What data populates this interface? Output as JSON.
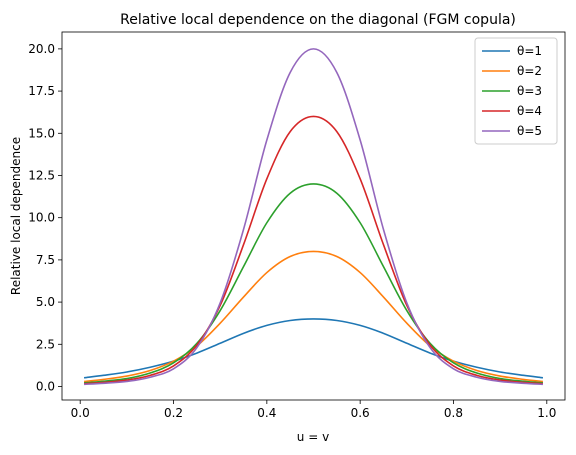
{
  "chart_data": {
    "type": "line",
    "title": "Relative local dependence on the diagonal (FGM copula)",
    "xlabel": "u = v",
    "ylabel": "Relative local dependence",
    "xlim": [
      -0.039,
      1.039
    ],
    "ylim": [
      -0.8,
      21.0
    ],
    "xticks": [
      "0.0",
      "0.2",
      "0.4",
      "0.6",
      "0.8",
      "1.0"
    ],
    "xtick_values": [
      0.0,
      0.2,
      0.4,
      0.6,
      0.8,
      1.0
    ],
    "yticks": [
      "0.0",
      "2.5",
      "5.0",
      "7.5",
      "10.0",
      "12.5",
      "15.0",
      "17.5",
      "20.0"
    ],
    "ytick_values": [
      0.0,
      2.5,
      5.0,
      7.5,
      10.0,
      12.5,
      15.0,
      17.5,
      20.0
    ],
    "grid": false,
    "legend_position": "top-right",
    "x": [
      0.01,
      0.05,
      0.1,
      0.15,
      0.2,
      0.25,
      0.3,
      0.35,
      0.4,
      0.45,
      0.5,
      0.55,
      0.6,
      0.65,
      0.7,
      0.75,
      0.8,
      0.85,
      0.9,
      0.95,
      0.99
    ],
    "series": [
      {
        "name": "θ=1",
        "color": "#1f77b4",
        "values": [
          0.52,
          0.66,
          0.86,
          1.14,
          1.5,
          1.98,
          2.56,
          3.15,
          3.62,
          3.91,
          4.0,
          3.91,
          3.62,
          3.15,
          2.56,
          1.98,
          1.5,
          1.14,
          0.86,
          0.66,
          0.52
        ]
      },
      {
        "name": "θ=2",
        "color": "#ff7f0e",
        "values": [
          0.3,
          0.42,
          0.62,
          0.95,
          1.5,
          2.4,
          3.75,
          5.3,
          6.75,
          7.7,
          8.0,
          7.7,
          6.75,
          5.3,
          3.75,
          2.4,
          1.5,
          0.95,
          0.62,
          0.42,
          0.3
        ]
      },
      {
        "name": "θ=3",
        "color": "#2ca02c",
        "values": [
          0.22,
          0.31,
          0.47,
          0.8,
          1.4,
          2.55,
          4.5,
          7.1,
          9.7,
          11.45,
          12.0,
          11.45,
          9.7,
          7.1,
          4.5,
          2.55,
          1.4,
          0.8,
          0.47,
          0.31,
          0.22
        ]
      },
      {
        "name": "θ=4",
        "color": "#d62728",
        "values": [
          0.17,
          0.24,
          0.38,
          0.66,
          1.22,
          2.45,
          4.8,
          8.4,
          12.3,
          15.1,
          16.0,
          15.1,
          12.3,
          8.4,
          4.8,
          2.45,
          1.22,
          0.66,
          0.38,
          0.24,
          0.17
        ]
      },
      {
        "name": "θ=5",
        "color": "#9467bd",
        "values": [
          0.13,
          0.19,
          0.3,
          0.55,
          1.05,
          2.3,
          4.95,
          9.3,
          14.6,
          18.6,
          20.0,
          18.6,
          14.6,
          9.3,
          4.95,
          2.3,
          1.05,
          0.55,
          0.3,
          0.19,
          0.13
        ]
      }
    ]
  }
}
